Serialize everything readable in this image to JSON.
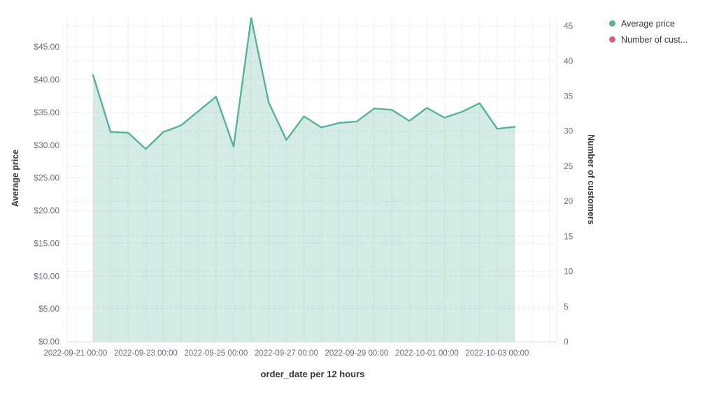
{
  "chart_data": {
    "type": "area",
    "title": "",
    "xlabel": "order_date per 12 hours",
    "ylabel": "Average price",
    "ylabel_right": "Number of customers",
    "grid": true,
    "x_axis": {
      "title": "order_date per 12 hours",
      "interval": "12 hours",
      "tick_labels": [
        "2022-09-21 00:00",
        "2022-09-23 00:00",
        "2022-09-25 00:00",
        "2022-09-27 00:00",
        "2022-09-29 00:00",
        "2022-10-01 00:00",
        "2022-10-03 00:00"
      ]
    },
    "left_axis": {
      "title": "Average price",
      "range": [
        0,
        49.5
      ],
      "tick_values": [
        0,
        5,
        10,
        15,
        20,
        25,
        30,
        35,
        40,
        45
      ],
      "tick_labels": [
        "$0.00",
        "$5.00",
        "$10.00",
        "$15.00",
        "$20.00",
        "$25.00",
        "$30.00",
        "$35.00",
        "$40.00",
        "$45.00"
      ]
    },
    "right_axis": {
      "title": "Number of customers",
      "range": [
        0,
        46.2
      ],
      "tick_values": [
        0,
        5,
        10,
        15,
        20,
        25,
        30,
        35,
        40,
        45
      ],
      "tick_labels": [
        "0",
        "5",
        "10",
        "15",
        "20",
        "25",
        "30",
        "35",
        "40",
        "45"
      ]
    },
    "x": [
      "2022-09-21 12:00",
      "2022-09-22 00:00",
      "2022-09-22 12:00",
      "2022-09-23 00:00",
      "2022-09-23 12:00",
      "2022-09-24 00:00",
      "2022-09-24 12:00",
      "2022-09-25 00:00",
      "2022-09-25 12:00",
      "2022-09-26 00:00",
      "2022-09-26 12:00",
      "2022-09-27 00:00",
      "2022-09-27 12:00",
      "2022-09-28 00:00",
      "2022-09-28 12:00",
      "2022-09-29 00:00",
      "2022-09-29 12:00",
      "2022-09-30 00:00",
      "2022-09-30 12:00",
      "2022-10-01 00:00",
      "2022-10-01 12:00",
      "2022-10-02 00:00",
      "2022-10-02 12:00",
      "2022-10-03 00:00",
      "2022-10-03 12:00"
    ],
    "series": [
      {
        "name": "Average price",
        "axis": "left",
        "style": "area",
        "color": "#54b399",
        "values": [
          40.7,
          32.0,
          31.9,
          29.4,
          32.0,
          33.0,
          35.2,
          37.4,
          29.8,
          49.4,
          36.5,
          30.8,
          34.4,
          32.7,
          33.4,
          33.6,
          35.6,
          35.4,
          33.7,
          35.7,
          34.2,
          35.1,
          36.4,
          32.5,
          32.8
        ]
      },
      {
        "name": "Number of customers",
        "axis": "right",
        "style": "line",
        "color": "#d36086",
        "values": []
      }
    ],
    "legend": {
      "position": "top-right",
      "items": [
        {
          "label": "Average price",
          "color": "#54b399"
        },
        {
          "label": "Number of cust...",
          "color": "#d36086"
        }
      ]
    }
  }
}
